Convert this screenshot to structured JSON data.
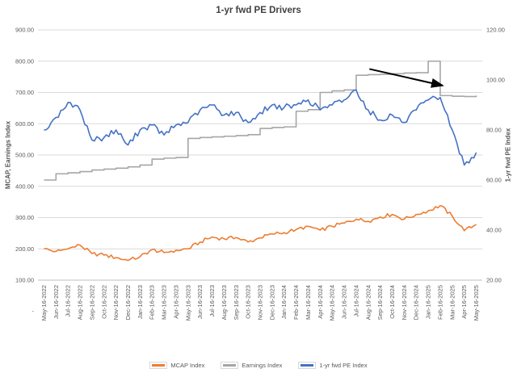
{
  "chart_data": {
    "type": "line",
    "title": "1-yr fwd PE Drivers",
    "ylabel_left": "MCAP, Earnings Index",
    "ylabel_right": "1-yr fwd PE Index",
    "y_left": {
      "min": 100,
      "max": 900,
      "step": 100,
      "tick_format": "0.00"
    },
    "y_right": {
      "min": 20,
      "max": 120,
      "step": 20,
      "tick_format": "0.00"
    },
    "grid": true,
    "legend_position": "bottom",
    "categories": [
      "May-16-2022",
      "Jun-16-2022",
      "Jul-16-2022",
      "Aug-16-2022",
      "Sep-16-2022",
      "Oct-16-2022",
      "Nov-16-2022",
      "Dec-16-2022",
      "Jan-16-2023",
      "Feb-16-2023",
      "Mar-16-2023",
      "Apr-16-2023",
      "May-16-2023",
      "Jun-16-2023",
      "Jul-16-2023",
      "Aug-16-2023",
      "Sep-16-2023",
      "Oct-16-2023",
      "Nov-16-2023",
      "Dec-16-2023",
      "Jan-16-2024",
      "Feb-16-2024",
      "Mar-16-2024",
      "Apr-16-2024",
      "May-16-2024",
      "Jun-16-2024",
      "Jul-16-2024",
      "Aug-16-2024",
      "Sep-16-2024",
      "Oct-16-2024",
      "Nov-16-2024",
      "Dec-16-2024",
      "Jan-16-2025",
      "Feb-16-2025",
      "Mar-16-2025",
      "Apr-16-2025",
      "May-16-2025"
    ],
    "series": [
      {
        "name": "MCAP Index",
        "color": "#ED7D31",
        "axis": "left",
        "style": "noisy",
        "values": [
          200,
          192,
          200,
          212,
          185,
          180,
          172,
          163,
          175,
          198,
          188,
          196,
          200,
          222,
          238,
          232,
          236,
          222,
          235,
          248,
          252,
          262,
          272,
          260,
          272,
          282,
          295,
          288,
          302,
          310,
          295,
          310,
          322,
          338,
          305,
          258,
          278
        ]
      },
      {
        "name": "Earnings Index",
        "color": "#A6A6A6",
        "axis": "left",
        "style": "step",
        "values": [
          420,
          440,
          443,
          447,
          452,
          455,
          458,
          462,
          468,
          487,
          490,
          492,
          553,
          556,
          558,
          560,
          562,
          565,
          585,
          588,
          590,
          640,
          645,
          700,
          705,
          708,
          755,
          757,
          758,
          760,
          762,
          763,
          800,
          690,
          688,
          687,
          690
        ]
      },
      {
        "name": "1-yr fwd PE Index",
        "color": "#4472C4",
        "axis": "right",
        "style": "noisy",
        "values": [
          80,
          85,
          91,
          88,
          76,
          77,
          80,
          74,
          80,
          82,
          78,
          82,
          83,
          88,
          90,
          86,
          87,
          83,
          87,
          90,
          89,
          90,
          92,
          88,
          90,
          92,
          96,
          88,
          84,
          86,
          83,
          88,
          92,
          93,
          80,
          66,
          71
        ]
      }
    ],
    "annotation_arrow": {
      "axis": "left",
      "from_index": 27.1,
      "from_value": 775,
      "to_index": 33.2,
      "to_value": 722
    }
  },
  "misc": {
    "stray_dash": "-"
  }
}
